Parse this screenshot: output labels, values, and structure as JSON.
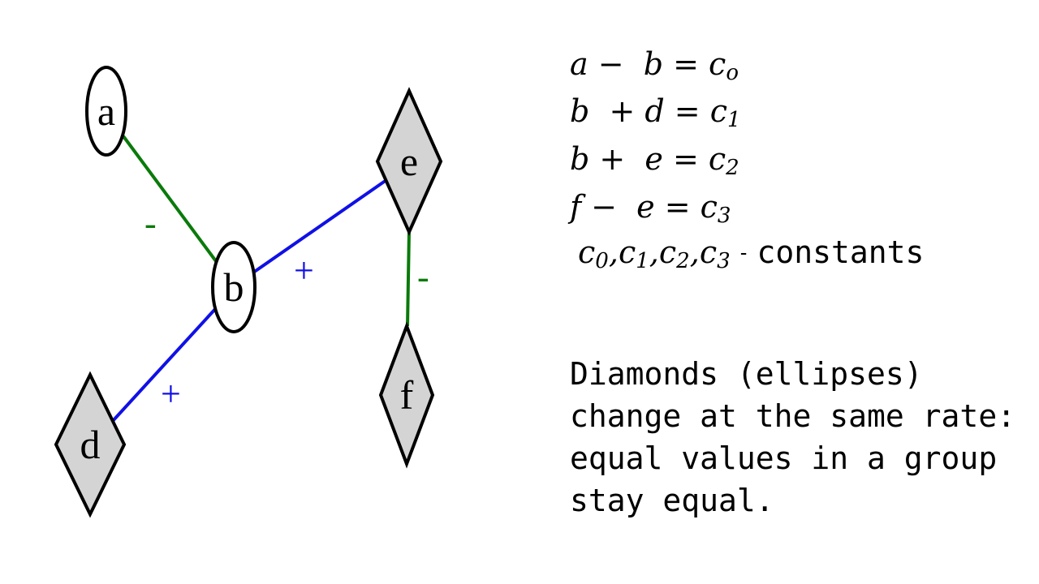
{
  "colors": {
    "minus_edge": "#0a7a0a",
    "plus_edge": "#1010e6",
    "diamond_fill": "#d4d4d4",
    "ellipse_fill": "#ffffff"
  },
  "nodes": {
    "a": {
      "label": "a",
      "shape": "ellipse"
    },
    "b": {
      "label": "b",
      "shape": "ellipse"
    },
    "d": {
      "label": "d",
      "shape": "diamond"
    },
    "e": {
      "label": "e",
      "shape": "diamond"
    },
    "f": {
      "label": "f",
      "shape": "diamond"
    }
  },
  "edges": {
    "a_b": {
      "sign": "-"
    },
    "b_e": {
      "sign": "+"
    },
    "b_d": {
      "sign": "+"
    },
    "e_f": {
      "sign": "-"
    }
  },
  "equations": [
    {
      "lhs": "a −  b = c",
      "sub": "o"
    },
    {
      "lhs": "b  + d = c",
      "sub": "1"
    },
    {
      "lhs": "b +  e = c",
      "sub": "2"
    },
    {
      "lhs": "f −  e = c",
      "sub": "3"
    }
  ],
  "constants_line": {
    "symbols": [
      {
        "base": "c",
        "sub": "0"
      },
      {
        "base": "c",
        "sub": "1"
      },
      {
        "base": "c",
        "sub": "2"
      },
      {
        "base": "c",
        "sub": "3"
      }
    ],
    "separator": ",",
    "dash": "-",
    "word": "constants"
  },
  "note": "Diamonds (ellipses) change at the same rate: equal values in a group stay equal."
}
